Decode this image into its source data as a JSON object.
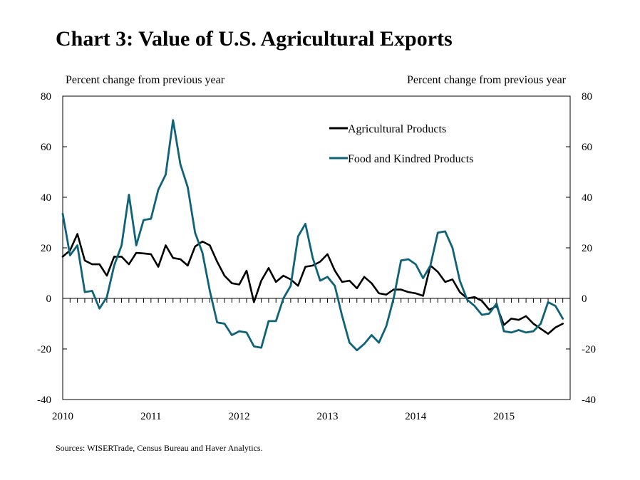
{
  "title": "Chart 3: Value of U.S. Agricultural Exports",
  "source": "Sources: WISERTrade, Census Bureau and Haver Analytics.",
  "chart_data": {
    "type": "line",
    "ylabel_left": "Percent change from previous year",
    "ylabel_right": "Percent change from previous year",
    "ylim": [
      -40,
      80
    ],
    "yticks": [
      -40,
      -20,
      0,
      20,
      40,
      60,
      80
    ],
    "xlim": [
      2010,
      2015.75
    ],
    "xticks": [
      2010,
      2011,
      2012,
      2013,
      2014,
      2015
    ],
    "xtick_labels": [
      "2010",
      "2011",
      "2012",
      "2013",
      "2014",
      "2015"
    ],
    "grid": false,
    "legend_position": "top-right",
    "series": [
      {
        "name": "Agricultural Products",
        "color": "#000000",
        "x_start": 2010,
        "step": "monthly",
        "values": [
          16.5,
          19,
          25.5,
          15,
          13.5,
          13.5,
          9,
          16.5,
          16.5,
          13.5,
          18,
          17.8,
          17.5,
          12.5,
          21,
          16,
          15.5,
          13,
          20.5,
          22.5,
          21,
          14.5,
          9,
          6,
          5.5,
          11,
          -1.5,
          7,
          12,
          6.5,
          9,
          7.5,
          5,
          12.5,
          13,
          14.5,
          17.5,
          11,
          6.5,
          7,
          4,
          8.5,
          6,
          2,
          1.5,
          3.5,
          3.5,
          2.5,
          2,
          1,
          13,
          10.5,
          6.5,
          7.5,
          2.5,
          0,
          0.5,
          -1,
          -4.5,
          -3,
          -10.5,
          -8,
          -8.5,
          -7,
          -10,
          -12,
          -14,
          -11.5,
          -10
        ]
      },
      {
        "name": "Food and Kindred Products",
        "color": "#0e6379",
        "x_start": 2010,
        "step": "monthly",
        "values": [
          33.5,
          17,
          21,
          2.5,
          3,
          -4,
          0.5,
          13,
          21,
          41,
          21,
          31,
          31.5,
          43,
          49,
          70.5,
          53,
          44,
          26,
          18,
          3,
          -9.5,
          -10,
          -14.5,
          -13,
          -13.5,
          -19,
          -19.5,
          -9,
          -9,
          0,
          5,
          24.5,
          29.5,
          16,
          7,
          8.5,
          5,
          -7,
          -17.5,
          -20.5,
          -18,
          -14.5,
          -17.5,
          -11,
          0,
          15,
          15.5,
          13.5,
          8,
          13,
          26,
          26.5,
          20,
          7,
          -0.5,
          -3,
          -6.5,
          -6,
          -2,
          -13,
          -13.5,
          -12.5,
          -13.5,
          -13,
          -10,
          -1.5,
          -3,
          -8
        ]
      }
    ]
  }
}
